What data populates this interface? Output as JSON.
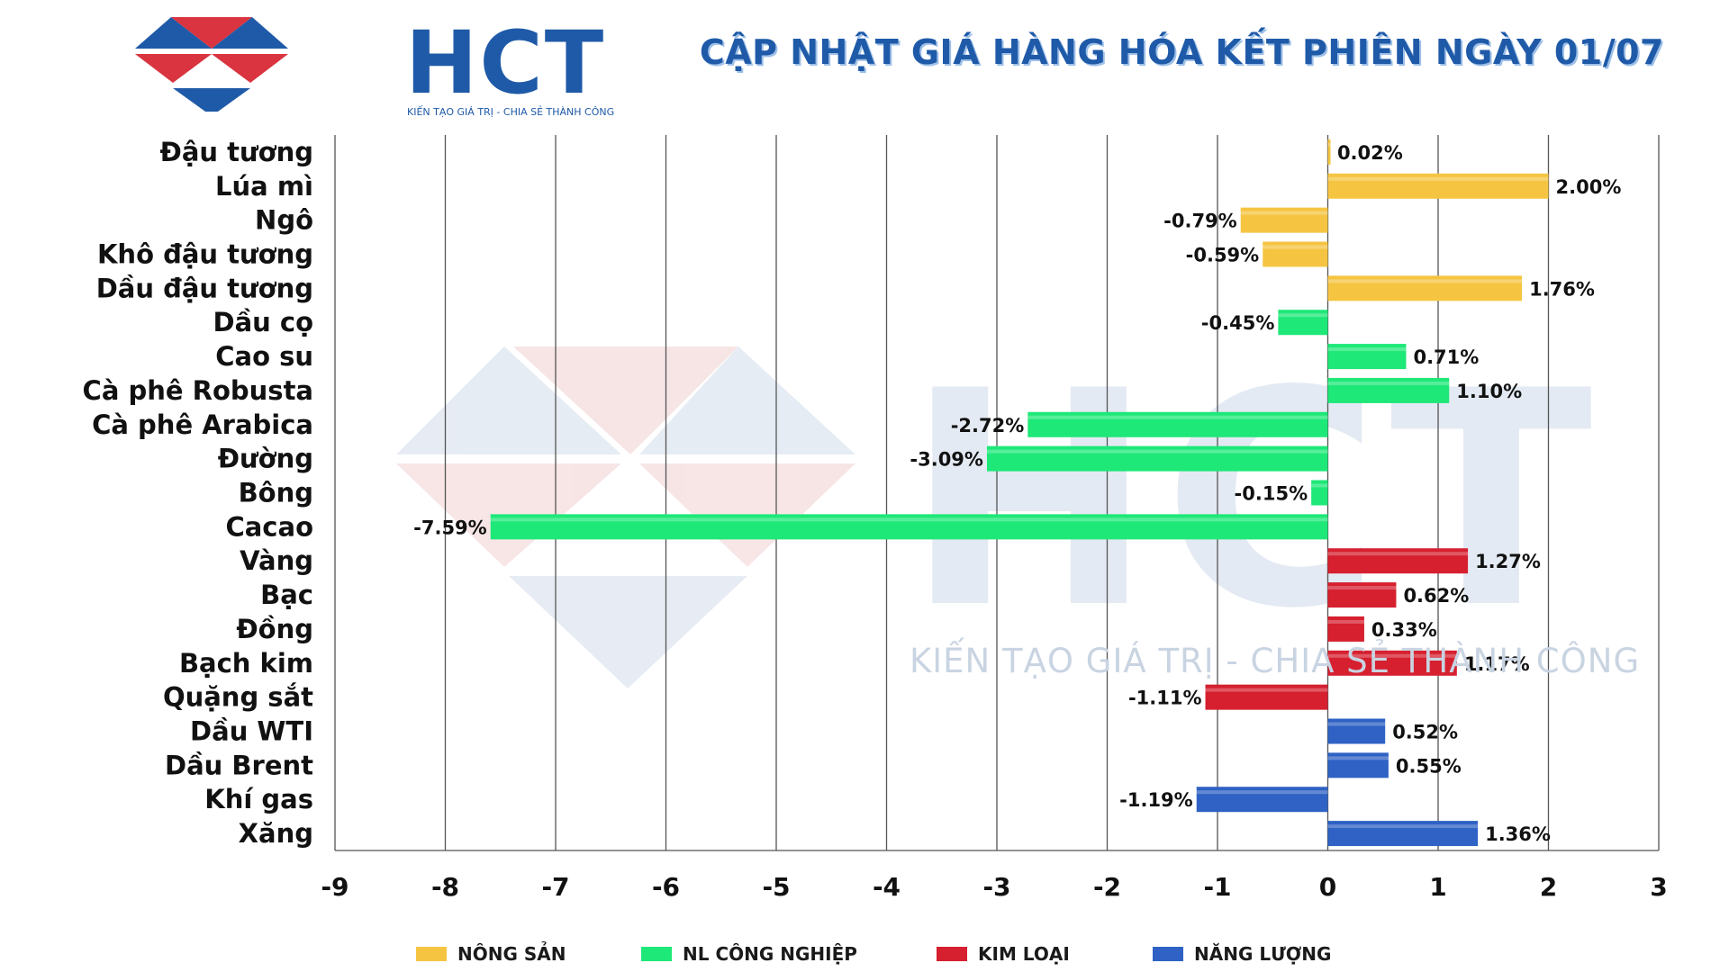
{
  "header": {
    "logo_text": "HCT",
    "logo_tagline": "KIẾN TẠO GIÁ TRỊ - CHIA SẺ THÀNH CÔNG",
    "title": "CẬP NHẬT GIÁ HÀNG HÓA KẾT PHIÊN NGÀY 01/07"
  },
  "watermark": {
    "text": "HCT",
    "tagline": "KIẾN TẠO GIÁ TRỊ - CHIA SẺ THÀNH CÔNG"
  },
  "colors": {
    "NÔNG SẢN": "#f5c542",
    "NL CÔNG NGHIỆP": "#1ee878",
    "KIM LOẠI": "#d62030",
    "NĂNG LƯỢNG": "#2f62c4"
  },
  "chart_data": {
    "type": "bar",
    "orientation": "horizontal",
    "xlim": [
      -9,
      3
    ],
    "xticks": [
      -9,
      -8,
      -7,
      -6,
      -5,
      -4,
      -3,
      -2,
      -1,
      0,
      1,
      2,
      3
    ],
    "grid": "vertical",
    "legend_position": "bottom",
    "title": "CẬP NHẬT GIÁ HÀNG HÓA KẾT PHIÊN NGÀY 01/07",
    "legend": [
      "NÔNG SẢN",
      "NL CÔNG NGHIỆP",
      "KIM LOẠI",
      "NĂNG LƯỢNG"
    ],
    "items": [
      {
        "name": "Đậu tương",
        "value": 0.02,
        "label": "0.02%",
        "group": "NÔNG SẢN"
      },
      {
        "name": "Lúa mì",
        "value": 2.0,
        "label": "2.00%",
        "group": "NÔNG SẢN"
      },
      {
        "name": "Ngô",
        "value": -0.79,
        "label": "-0.79%",
        "group": "NÔNG SẢN"
      },
      {
        "name": "Khô đậu tương",
        "value": -0.59,
        "label": "-0.59%",
        "group": "NÔNG SẢN"
      },
      {
        "name": "Dầu đậu tương",
        "value": 1.76,
        "label": "1.76%",
        "group": "NÔNG SẢN"
      },
      {
        "name": "Dầu cọ",
        "value": -0.45,
        "label": "-0.45%",
        "group": "NL CÔNG NGHIỆP"
      },
      {
        "name": "Cao su",
        "value": 0.71,
        "label": "0.71%",
        "group": "NL CÔNG NGHIỆP"
      },
      {
        "name": "Cà phê Robusta",
        "value": 1.1,
        "label": "1.10%",
        "group": "NL CÔNG NGHIỆP"
      },
      {
        "name": "Cà phê Arabica",
        "value": -2.72,
        "label": "-2.72%",
        "group": "NL CÔNG NGHIỆP"
      },
      {
        "name": "Đường",
        "value": -3.09,
        "label": "-3.09%",
        "group": "NL CÔNG NGHIỆP"
      },
      {
        "name": "Bông",
        "value": -0.15,
        "label": "-0.15%",
        "group": "NL CÔNG NGHIỆP"
      },
      {
        "name": "Cacao",
        "value": -7.59,
        "label": "-7.59%",
        "group": "NL CÔNG NGHIỆP"
      },
      {
        "name": "Vàng",
        "value": 1.27,
        "label": "1.27%",
        "group": "KIM LOẠI"
      },
      {
        "name": "Bạc",
        "value": 0.62,
        "label": "0.62%",
        "group": "KIM LOẠI"
      },
      {
        "name": "Đồng",
        "value": 0.33,
        "label": "0.33%",
        "group": "KIM LOẠI"
      },
      {
        "name": "Bạch kim",
        "value": 1.17,
        "label": "1.17%",
        "group": "KIM LOẠI"
      },
      {
        "name": "Quặng sắt",
        "value": -1.11,
        "label": "-1.11%",
        "group": "KIM LOẠI"
      },
      {
        "name": "Dầu WTI",
        "value": 0.52,
        "label": "0.52%",
        "group": "NĂNG LƯỢNG"
      },
      {
        "name": "Dầu Brent",
        "value": 0.55,
        "label": "0.55%",
        "group": "NĂNG LƯỢNG"
      },
      {
        "name": "Khí gas",
        "value": -1.19,
        "label": "-1.19%",
        "group": "NĂNG LƯỢNG"
      },
      {
        "name": "Xăng",
        "value": 1.36,
        "label": "1.36%",
        "group": "NĂNG LƯỢNG"
      }
    ]
  }
}
